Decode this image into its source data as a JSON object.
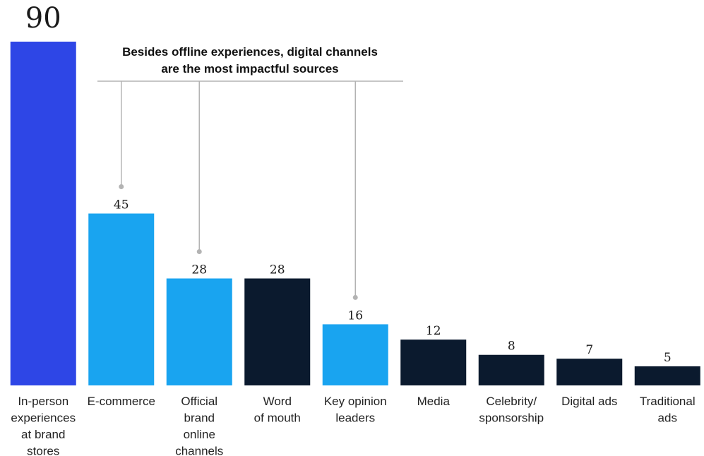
{
  "chart_data": {
    "type": "bar",
    "categories": [
      [
        "In-person",
        "experiences",
        "at brand",
        "stores"
      ],
      [
        "E-commerce"
      ],
      [
        "Official",
        "brand",
        "online",
        "channels"
      ],
      [
        "Word",
        "of mouth"
      ],
      [
        "Key opinion",
        "leaders"
      ],
      [
        "Media"
      ],
      [
        "Celebrity/",
        "sponsorship"
      ],
      [
        "Digital ads"
      ],
      [
        "Traditional",
        "ads"
      ]
    ],
    "values": [
      90,
      45,
      28,
      28,
      16,
      12,
      8,
      7,
      5
    ],
    "value_labels": [
      "90",
      "45",
      "28",
      "28",
      "16",
      "12",
      "8",
      "7",
      "5"
    ],
    "bar_colors": [
      "#2E46E6",
      "#19A4F0",
      "#19A4F0",
      "#0B1A2E",
      "#19A4F0",
      "#0B1A2E",
      "#0B1A2E",
      "#0B1A2E",
      "#0B1A2E"
    ],
    "highlight_value_color": "#2E46E6",
    "ylim": [
      0,
      90
    ],
    "grid": false,
    "annotation": {
      "lines": [
        "Besides offline experiences, digital channels",
        "are the most impactful sources"
      ],
      "points_to": [
        1,
        2,
        4
      ],
      "line_color": "#B3B3B3"
    }
  }
}
